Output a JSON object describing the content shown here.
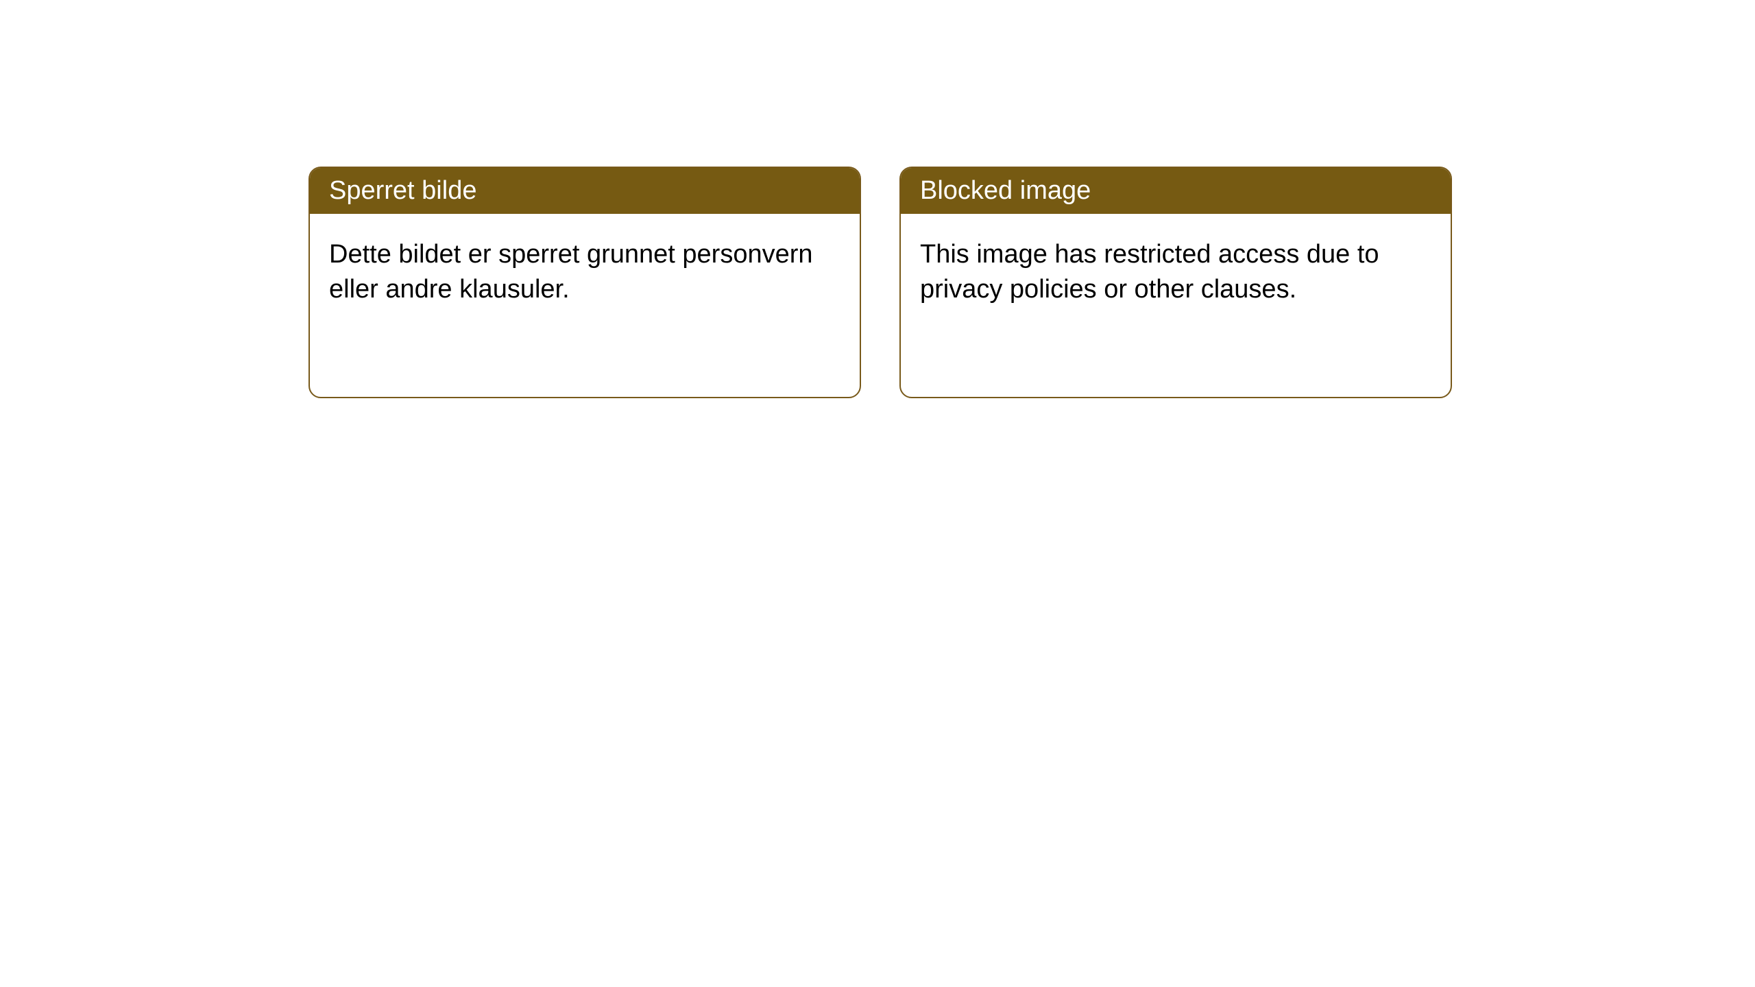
{
  "cards": [
    {
      "title": "Sperret bilde",
      "body": "Dette bildet er sperret grunnet personvern eller andre klausuler."
    },
    {
      "title": "Blocked image",
      "body": "This image has restricted access due to privacy policies or other clauses."
    }
  ],
  "styles": {
    "header_background": "#765a12",
    "header_text_color": "#ffffff",
    "border_color": "#78591a",
    "body_background": "#ffffff",
    "body_text_color": "#000000",
    "border_radius": 18,
    "title_fontsize": 38,
    "body_fontsize": 38
  }
}
